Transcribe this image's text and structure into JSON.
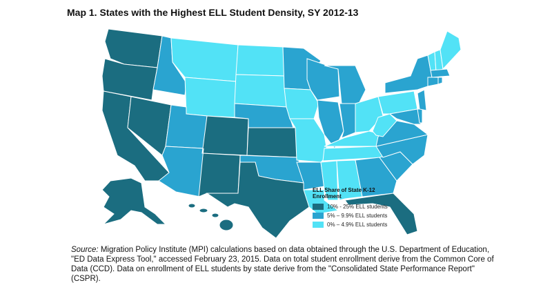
{
  "title": "Map 1. States with the Highest ELL Student Density, SY 2012-13",
  "legend": {
    "title": "ELL Share of State K-12 Enrollment",
    "items": [
      {
        "label": "10% - 25% ELL students",
        "color": "#1b6d80"
      },
      {
        "label": "5% – 9.9% ELL students",
        "color": "#2aa4d0"
      },
      {
        "label": "0% – 4.9% ELL students",
        "color": "#52e2f6"
      }
    ]
  },
  "source": {
    "label": "Source:",
    "text": "Migration Policy Institute (MPI) calculations based on data obtained through the U.S. Department of Education, \"ED Data Express Tool,\" accessed February 23, 2015. Data on total student enrollment derive from the Common Core of Data (CCD). Data on enrollment of ELL students by state derive from the \"Consolidated State Performance Report\" (CSPR)."
  }
}
